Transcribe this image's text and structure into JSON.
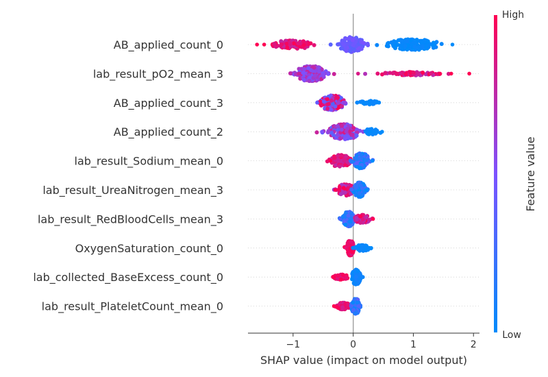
{
  "chart_data": {
    "type": "scatter",
    "subtype": "shap-beeswarm",
    "title": "",
    "xlabel": "SHAP value (impact on model output)",
    "xlim": [
      -1.75,
      2.1
    ],
    "xticks": [
      -1,
      0,
      1,
      2
    ],
    "xtick_labels": [
      "−1",
      "0",
      "1",
      "2"
    ],
    "zero_line": 0,
    "grid": false,
    "row_guides": "dotted",
    "colorbar": {
      "label": "Feature value",
      "high_label": "High",
      "low_label": "Low",
      "low_color": "#008bfb",
      "mid_color": "#7c52ff",
      "high_color": "#ff0052",
      "placement": "right"
    },
    "features": [
      {
        "name": "AB_applied_count_0",
        "clusters": [
          {
            "x": -1.0,
            "spread": 0.3,
            "n": 110,
            "color": [
              0.75,
              1.0
            ],
            "w": 0.55
          },
          {
            "x": -0.03,
            "spread": 0.18,
            "n": 130,
            "color": [
              0.35,
              0.5
            ],
            "w": 1.0
          },
          {
            "x": 1.0,
            "spread": 0.38,
            "n": 160,
            "color": [
              0.0,
              0.05
            ],
            "w": 0.7
          }
        ],
        "outliers": [
          {
            "x": -1.6,
            "color": 1.0
          },
          {
            "x": -1.48,
            "color": 1.0
          },
          {
            "x": 1.65,
            "color": 0.0
          }
        ]
      },
      {
        "name": "lab_result_pO2_mean_3",
        "clusters": [
          {
            "x": -0.7,
            "spread": 0.22,
            "n": 230,
            "color": [
              0.45,
              0.8
            ],
            "w": 1.0
          },
          {
            "x": 1.0,
            "spread": 0.5,
            "n": 75,
            "color": [
              0.7,
              1.0
            ],
            "w": 0.22
          }
        ],
        "outliers": [
          {
            "x": 0.08,
            "color": 0.85
          },
          {
            "x": 1.63,
            "color": 1.0
          },
          {
            "x": 1.93,
            "color": 1.0
          }
        ]
      },
      {
        "name": "AB_applied_count_3",
        "clusters": [
          {
            "x": -0.35,
            "spread": 0.17,
            "n": 200,
            "color": [
              0.3,
              1.0
            ],
            "w": 1.0
          },
          {
            "x": 0.25,
            "spread": 0.15,
            "n": 25,
            "color": [
              0.0,
              0.05
            ],
            "w": 0.25
          }
        ],
        "outliers": [
          {
            "x": -0.6,
            "color": 0.4
          }
        ]
      },
      {
        "name": "AB_applied_count_2",
        "clusters": [
          {
            "x": -0.15,
            "spread": 0.22,
            "n": 180,
            "color": [
              0.35,
              0.9
            ],
            "w": 0.8
          },
          {
            "x": 0.32,
            "spread": 0.12,
            "n": 30,
            "color": [
              0.0,
              0.05
            ],
            "w": 0.3
          }
        ],
        "outliers": [
          {
            "x": -0.52,
            "color": 0.5
          },
          {
            "x": 0.48,
            "color": 0.0
          }
        ]
      },
      {
        "name": "lab_result_Sodium_mean_0",
        "clusters": [
          {
            "x": -0.22,
            "spread": 0.16,
            "n": 110,
            "color": [
              0.75,
              1.0
            ],
            "w": 0.7
          },
          {
            "x": 0.13,
            "spread": 0.12,
            "n": 110,
            "color": [
              0.0,
              0.4
            ],
            "w": 0.9
          }
        ],
        "outliers": [
          {
            "x": -0.38,
            "color": 1.0
          },
          {
            "x": 0.32,
            "color": 0.0
          }
        ]
      },
      {
        "name": "lab_result_UreaNitrogen_mean_3",
        "clusters": [
          {
            "x": -0.12,
            "spread": 0.12,
            "n": 110,
            "color": [
              0.6,
              1.0
            ],
            "w": 0.7
          },
          {
            "x": 0.1,
            "spread": 0.09,
            "n": 110,
            "color": [
              0.0,
              0.3
            ],
            "w": 0.9
          }
        ],
        "outliers": [
          {
            "x": -0.3,
            "color": 1.0
          },
          {
            "x": 0.22,
            "color": 0.0
          }
        ]
      },
      {
        "name": "lab_result_RedBloodCells_mean_3",
        "clusters": [
          {
            "x": -0.08,
            "spread": 0.08,
            "n": 140,
            "color": [
              0.0,
              0.4
            ],
            "w": 1.0
          },
          {
            "x": 0.15,
            "spread": 0.11,
            "n": 80,
            "color": [
              0.7,
              1.0
            ],
            "w": 0.55
          }
        ],
        "outliers": [
          {
            "x": -0.22,
            "color": 0.3
          },
          {
            "x": 0.33,
            "color": 1.0
          }
        ]
      },
      {
        "name": "OxygenSaturation_count_0",
        "clusters": [
          {
            "x": -0.05,
            "spread": 0.05,
            "n": 150,
            "color": [
              0.85,
              1.0
            ],
            "w": 1.0
          },
          {
            "x": 0.15,
            "spread": 0.1,
            "n": 50,
            "color": [
              0.0,
              0.05
            ],
            "w": 0.4
          }
        ],
        "outliers": [
          {
            "x": 0.3,
            "color": 0.0
          }
        ]
      },
      {
        "name": "lab_collected_BaseExcess_count_0",
        "clusters": [
          {
            "x": -0.2,
            "spread": 0.1,
            "n": 60,
            "color": [
              0.85,
              1.0
            ],
            "w": 0.35
          },
          {
            "x": 0.05,
            "spread": 0.06,
            "n": 150,
            "color": [
              0.0,
              0.1
            ],
            "w": 1.0
          }
        ],
        "outliers": [
          {
            "x": -0.32,
            "color": 1.0
          }
        ]
      },
      {
        "name": "lab_result_PlateletCount_mean_0",
        "clusters": [
          {
            "x": -0.17,
            "spread": 0.1,
            "n": 90,
            "color": [
              0.8,
              1.0
            ],
            "w": 0.45
          },
          {
            "x": 0.04,
            "spread": 0.06,
            "n": 140,
            "color": [
              0.0,
              0.4
            ],
            "w": 1.0
          }
        ],
        "outliers": [
          {
            "x": -0.32,
            "color": 1.0
          }
        ]
      }
    ]
  }
}
